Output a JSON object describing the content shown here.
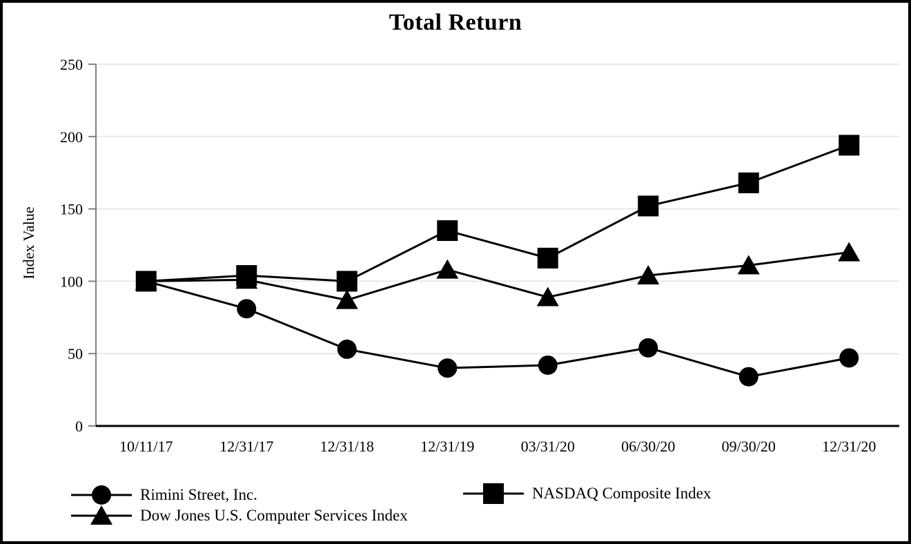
{
  "chart_data": {
    "type": "line",
    "title": "Total Return",
    "ylabel": "Index Value",
    "xlabel": "",
    "categories": [
      "10/11/17",
      "12/31/17",
      "12/31/18",
      "12/31/19",
      "03/31/20",
      "06/30/20",
      "09/30/20",
      "12/31/20"
    ],
    "series": [
      {
        "name": "Rimini Street, Inc.",
        "marker": "circle",
        "values": [
          100,
          81,
          53,
          40,
          42,
          54,
          34,
          47
        ]
      },
      {
        "name": "NASDAQ Composite Index",
        "marker": "square",
        "values": [
          100,
          104,
          100,
          135,
          116,
          152,
          168,
          194
        ]
      },
      {
        "name": "Dow Jones U.S. Computer Services Index",
        "marker": "triangle",
        "values": [
          100,
          101,
          87,
          108,
          89,
          104,
          111,
          120
        ]
      }
    ],
    "ylim": [
      0,
      250
    ],
    "yticks": [
      0,
      50,
      100,
      150,
      200,
      250
    ],
    "grid": true,
    "legend_position": "bottom",
    "colors": {
      "series": "#000000",
      "gridline": "#e8e8e8",
      "axis": "#808080"
    }
  },
  "legend": {
    "items": [
      {
        "label": "Rimini Street, Inc.",
        "marker": "circle"
      },
      {
        "label": "NASDAQ Composite Index",
        "marker": "square"
      },
      {
        "label": "Dow Jones U.S. Computer Services Index",
        "marker": "triangle"
      }
    ]
  }
}
